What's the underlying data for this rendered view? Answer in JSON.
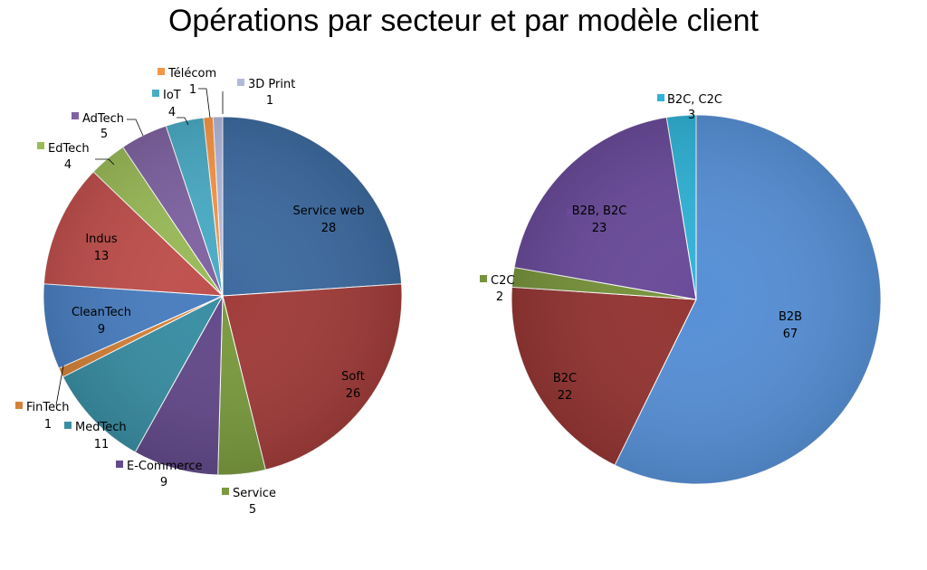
{
  "title": "Opérations par secteur et par modèle client",
  "chart_data": [
    {
      "type": "pie",
      "title": "",
      "labels": [
        "Service web",
        "Soft",
        "Service",
        "E-Commerce",
        "MedTech",
        "FinTech",
        "CleanTech",
        "Indus",
        "EdTech",
        "AdTech",
        "IoT",
        "Télécom",
        "3D Print"
      ],
      "values": [
        28,
        26,
        5,
        9,
        11,
        1,
        9,
        13,
        4,
        5,
        4,
        1,
        1
      ],
      "colors": [
        "#3e6ba0",
        "#a13d3b",
        "#7a9a3f",
        "#634a8a",
        "#3a8ea3",
        "#d4823a",
        "#4a7ec0",
        "#c0504d",
        "#9bbb59",
        "#8064a2",
        "#4bacc6",
        "#f79646",
        "#b3b9dd"
      ],
      "start_angle_deg": 0,
      "direction": "clockwise"
    },
    {
      "type": "pie",
      "title": "",
      "labels": [
        "B2B",
        "B2C",
        "C2C",
        "B2B, B2C",
        "B2C, C2C"
      ],
      "values": [
        67,
        22,
        2,
        23,
        3
      ],
      "colors": [
        "#5790d6",
        "#943634",
        "#77933c",
        "#6a4b9a",
        "#31b3d6"
      ],
      "start_angle_deg": 0,
      "direction": "clockwise"
    }
  ]
}
